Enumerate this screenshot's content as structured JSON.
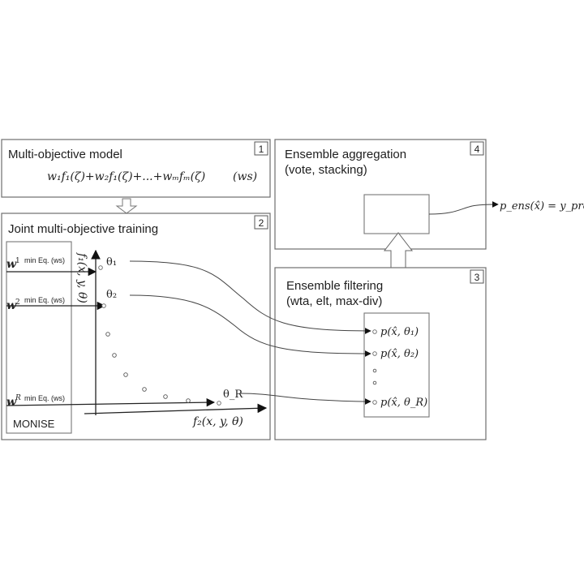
{
  "box1": {
    "number": "1",
    "title": "Multi-objective model",
    "formula": "w₁f₁(ζ)+w₂f₁(ζ)+...+wₘfₘ(ζ)",
    "formula_tag": "(ws)"
  },
  "box2": {
    "number": "2",
    "title": "Joint multi-objective training",
    "monise_label": "MONISE",
    "weights": [
      {
        "symbol": "w",
        "superscript": "1",
        "caption": "min Eq. (ws)"
      },
      {
        "symbol": "w",
        "superscript": "2",
        "caption": "min Eq. (ws)"
      },
      {
        "symbol": "w",
        "superscript": "R",
        "caption": "min Eq. (ws)"
      }
    ],
    "y_axis_label": "f₁(x, y, θ)",
    "x_axis_label": "f₂(x, y, θ)",
    "theta_labels": [
      "θ₁",
      "θ₂",
      "θ_R"
    ]
  },
  "box3": {
    "number": "3",
    "title_line1": "Ensemble filtering",
    "title_line2": "(wta, elt, max-div)",
    "models": [
      "p(x̂, θ₁)",
      "p(x̂, θ₂)",
      "p(x̂, θ_R)"
    ]
  },
  "box4": {
    "number": "4",
    "title_line1": "Ensemble aggregation",
    "title_line2": "(vote, stacking)"
  },
  "output": {
    "label": "p_ens(x̂) = y_pred"
  }
}
